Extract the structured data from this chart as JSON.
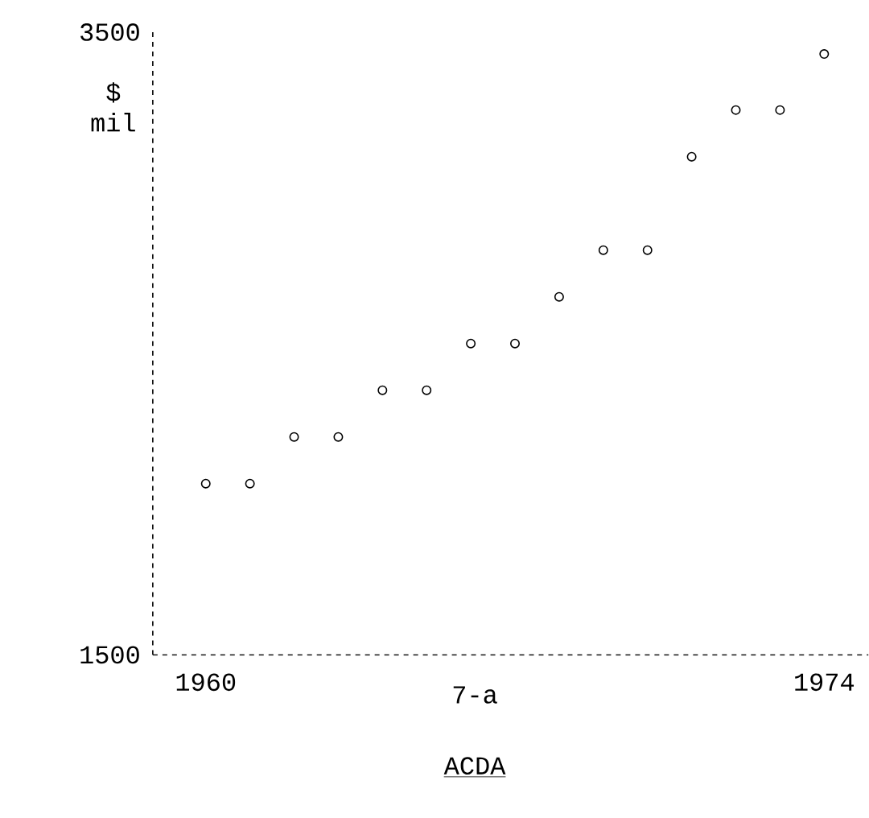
{
  "chart_data": {
    "type": "scatter",
    "ylabel": "$ mil",
    "x": [
      1960,
      1961,
      1962,
      1963,
      1964,
      1965,
      1966,
      1967,
      1968,
      1969,
      1970,
      1971,
      1972,
      1973,
      1974
    ],
    "values": [
      2050,
      2050,
      2200,
      2200,
      2350,
      2350,
      2500,
      2500,
      2650,
      2800,
      2800,
      3100,
      3250,
      3250,
      3430
    ],
    "color": "#000000",
    "marker": "circle",
    "xlim": [
      1958.8,
      1975
    ],
    "ylim": [
      1500,
      3500
    ],
    "xticks": [
      1960,
      1974
    ],
    "yticks": [
      1500,
      3500
    ],
    "annotations": [
      "7-a",
      "ACDA"
    ]
  }
}
